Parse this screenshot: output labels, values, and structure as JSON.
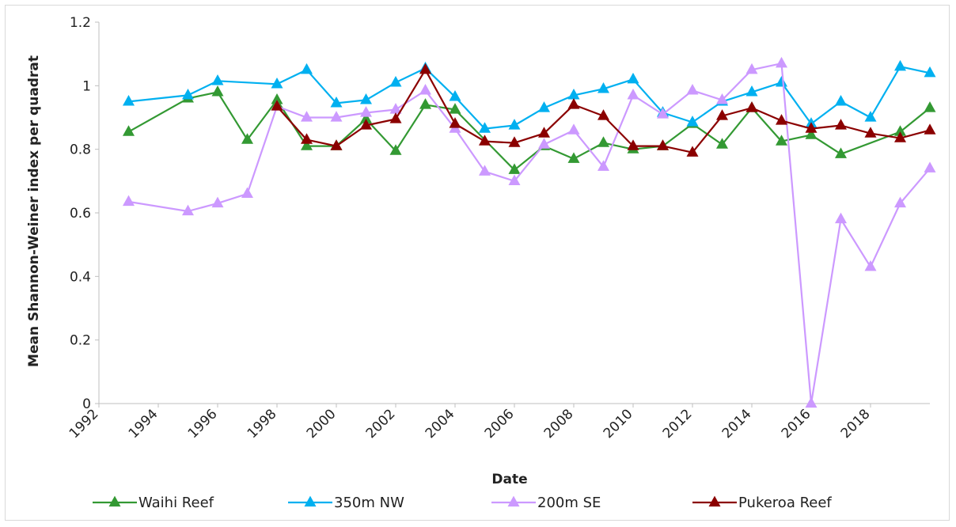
{
  "chart_data": {
    "type": "line",
    "title": "",
    "xlabel": "Date",
    "ylabel": "Mean Shannon-Weiner index per quadrat",
    "xlim": [
      1992,
      2020
    ],
    "ylim": [
      0,
      1.2
    ],
    "x_ticks": [
      "1992",
      "1994",
      "1996",
      "1998",
      "2000",
      "2002",
      "2004",
      "2006",
      "2008",
      "2010",
      "2012",
      "2014",
      "2016",
      "2018"
    ],
    "y_ticks": [
      "0",
      "0.2",
      "0.4",
      "0.6",
      "0.8",
      "1",
      "1.2"
    ],
    "grid": false,
    "legend_position": "bottom",
    "series": [
      {
        "name": "Waihi Reef",
        "color": "#339933",
        "points": [
          [
            1993,
            0.855
          ],
          [
            1995,
            0.96
          ],
          [
            1996,
            0.98
          ],
          [
            1997,
            0.83
          ],
          [
            1998,
            0.955
          ],
          [
            1999,
            0.81
          ],
          [
            2000,
            0.81
          ],
          [
            2001,
            0.895
          ],
          [
            2002,
            0.795
          ],
          [
            2003,
            0.94
          ],
          [
            2004,
            0.925
          ],
          [
            2006,
            0.735
          ],
          [
            2007,
            0.81
          ],
          [
            2008,
            0.77
          ],
          [
            2009,
            0.82
          ],
          [
            2010,
            0.8
          ],
          [
            2011,
            0.81
          ],
          [
            2012,
            0.88
          ],
          [
            2013,
            0.815
          ],
          [
            2014,
            0.93
          ],
          [
            2015,
            0.825
          ],
          [
            2016,
            0.845
          ],
          [
            2017,
            0.785
          ],
          [
            2019,
            0.855
          ],
          [
            2020,
            0.93
          ]
        ]
      },
      {
        "name": "350m NW",
        "color": "#00B0F0",
        "points": [
          [
            1993,
            0.95
          ],
          [
            1995,
            0.97
          ],
          [
            1996,
            1.015
          ],
          [
            1998,
            1.005
          ],
          [
            1999,
            1.05
          ],
          [
            2000,
            0.945
          ],
          [
            2001,
            0.955
          ],
          [
            2002,
            1.01
          ],
          [
            2003,
            1.055
          ],
          [
            2004,
            0.965
          ],
          [
            2005,
            0.865
          ],
          [
            2006,
            0.875
          ],
          [
            2007,
            0.93
          ],
          [
            2008,
            0.97
          ],
          [
            2009,
            0.99
          ],
          [
            2010,
            1.02
          ],
          [
            2011,
            0.915
          ],
          [
            2012,
            0.885
          ],
          [
            2013,
            0.95
          ],
          [
            2014,
            0.98
          ],
          [
            2015,
            1.01
          ],
          [
            2016,
            0.88
          ],
          [
            2017,
            0.95
          ],
          [
            2018,
            0.9
          ],
          [
            2019,
            1.06
          ],
          [
            2020,
            1.04
          ]
        ]
      },
      {
        "name": "200m SE",
        "color": "#CC99FF",
        "points": [
          [
            1993,
            0.635
          ],
          [
            1995,
            0.605
          ],
          [
            1996,
            0.63
          ],
          [
            1997,
            0.66
          ],
          [
            1998,
            0.935
          ],
          [
            1999,
            0.9
          ],
          [
            2000,
            0.9
          ],
          [
            2001,
            0.915
          ],
          [
            2002,
            0.925
          ],
          [
            2003,
            0.985
          ],
          [
            2004,
            0.865
          ],
          [
            2005,
            0.73
          ],
          [
            2006,
            0.7
          ],
          [
            2007,
            0.815
          ],
          [
            2008,
            0.86
          ],
          [
            2009,
            0.745
          ],
          [
            2010,
            0.97
          ],
          [
            2011,
            0.91
          ],
          [
            2012,
            0.985
          ],
          [
            2013,
            0.955
          ],
          [
            2014,
            1.05
          ],
          [
            2015,
            1.07
          ],
          [
            2016,
            0.0
          ],
          [
            2017,
            0.58
          ],
          [
            2018,
            0.43
          ],
          [
            2019,
            0.63
          ],
          [
            2020,
            0.74
          ]
        ]
      },
      {
        "name": "Pukeroa Reef",
        "color": "#8B0000",
        "points": [
          [
            1998,
            0.935
          ],
          [
            1999,
            0.83
          ],
          [
            2000,
            0.81
          ],
          [
            2001,
            0.875
          ],
          [
            2002,
            0.895
          ],
          [
            2003,
            1.05
          ],
          [
            2004,
            0.88
          ],
          [
            2005,
            0.825
          ],
          [
            2006,
            0.82
          ],
          [
            2007,
            0.85
          ],
          [
            2008,
            0.94
          ],
          [
            2009,
            0.905
          ],
          [
            2010,
            0.81
          ],
          [
            2011,
            0.81
          ],
          [
            2012,
            0.79
          ],
          [
            2013,
            0.905
          ],
          [
            2014,
            0.93
          ],
          [
            2015,
            0.89
          ],
          [
            2016,
            0.865
          ],
          [
            2017,
            0.875
          ],
          [
            2018,
            0.85
          ],
          [
            2019,
            0.835
          ],
          [
            2020,
            0.86
          ]
        ]
      }
    ]
  }
}
